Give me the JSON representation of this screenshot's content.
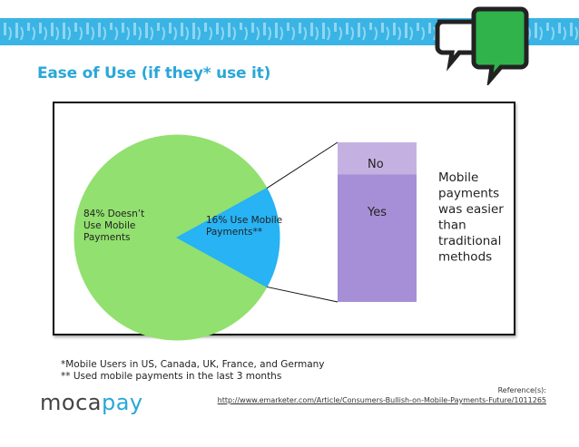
{
  "slide": {
    "title": "Ease of Use (if they* use it)",
    "footnote_1": "*Mobile Users in US, Canada, UK, France, and Germany",
    "footnote_2": "** Used mobile payments in the last 3 months",
    "reference_label": "Reference(s):",
    "reference_url": "http://www.emarketer.com/Article/Consumers-Bullish-on-Mobile-Payments-Future/1011265",
    "logo_part1": "moca",
    "logo_part2": "pay"
  },
  "colors": {
    "accent": "#2aa7d8",
    "pie_main": "#92e06f",
    "pie_slice": "#27b3f4",
    "bar_no": "#c5b1e1",
    "bar_yes": "#a68fd6",
    "banner": "#3ab4e4"
  },
  "chart_data": [
    {
      "type": "pie",
      "labels": [
        "84% Doesn’t Use Mobile Payments",
        "16% Use Mobile Payments**"
      ],
      "values": [
        84,
        16
      ],
      "colors": [
        "#92e06f",
        "#27b3f4"
      ]
    },
    {
      "type": "bar",
      "stacked": true,
      "categories": [
        "No",
        "Yes"
      ],
      "values": [
        0.2,
        0.8
      ],
      "colors": [
        "#c5b1e1",
        "#a68fd6"
      ],
      "annotation": "Mobile payments was easier than traditional methods"
    }
  ],
  "labels": {
    "pie_main_lines": [
      "84% Doesn’t",
      "Use Mobile",
      "Payments"
    ],
    "pie_slice_lines": [
      "16% Use Mobile",
      "Payments**"
    ],
    "annotation_lines": [
      "Mobile",
      "payments",
      "was easier",
      "than",
      "traditional",
      "methods"
    ]
  }
}
